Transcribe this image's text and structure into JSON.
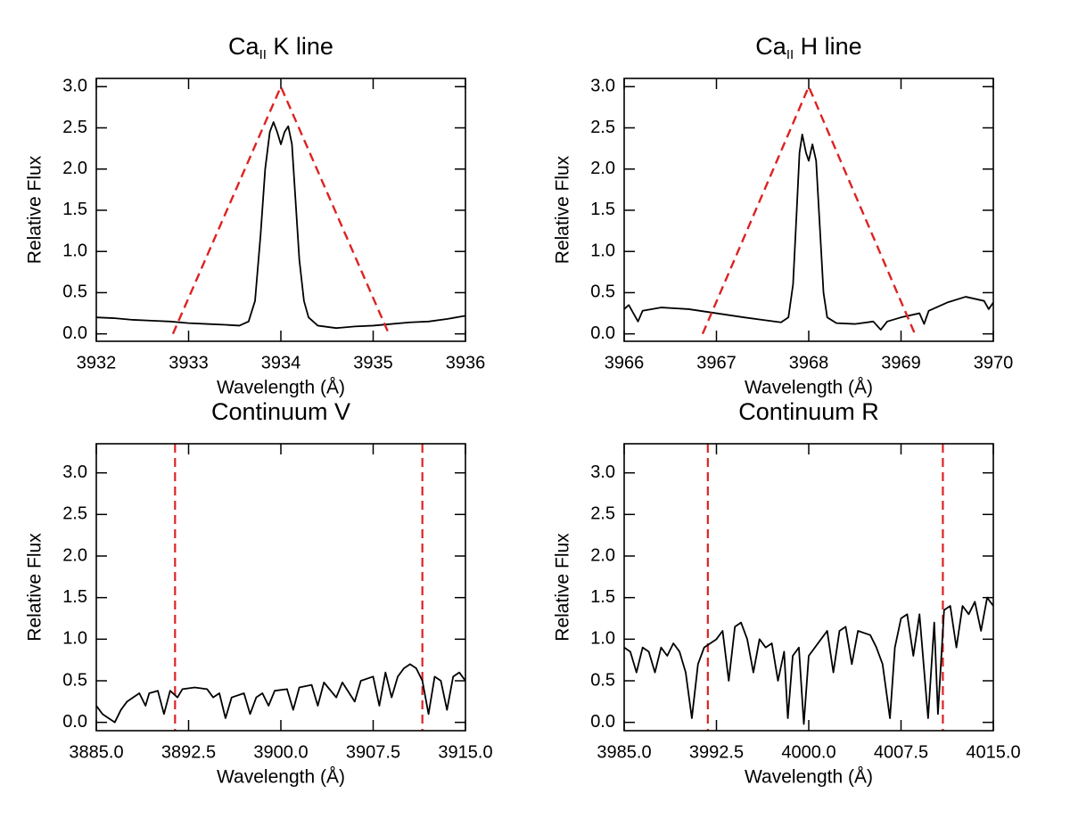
{
  "chart_data": [
    {
      "type": "line",
      "title": [
        {
          "text": "Ca"
        },
        {
          "text": "II",
          "sub": true
        },
        {
          "text": " K line"
        }
      ],
      "x_label": "Wavelength (Å)",
      "y_label": "Relative Flux",
      "xlim": [
        3932,
        3936
      ],
      "xticks": [
        3932,
        3933,
        3934,
        3935,
        3936
      ],
      "ylim": [
        -0.09,
        3.1
      ],
      "yticks": [
        {
          "value": 0,
          "label": "0.0"
        },
        0.5,
        {
          "value": 1,
          "label": "1.0"
        },
        1.5,
        {
          "value": 2,
          "label": "2.0"
        },
        2.5,
        {
          "value": 3,
          "label": "3.0"
        }
      ],
      "series": [
        {
          "color": "#000000",
          "style": "solid",
          "x": [
            3932.0,
            3932.2,
            3932.4,
            3932.6,
            3932.8,
            3933.0,
            3933.2,
            3933.4,
            3933.55,
            3933.65,
            3933.72,
            3933.78,
            3933.83,
            3933.88,
            3933.92,
            3933.96,
            3934.0,
            3934.04,
            3934.08,
            3934.12,
            3934.16,
            3934.2,
            3934.25,
            3934.3,
            3934.4,
            3934.6,
            3934.8,
            3935.0,
            3935.2,
            3935.4,
            3935.6,
            3935.8,
            3936.0
          ],
          "values": [
            0.2,
            0.19,
            0.17,
            0.16,
            0.15,
            0.13,
            0.12,
            0.11,
            0.1,
            0.15,
            0.4,
            1.2,
            2.0,
            2.45,
            2.57,
            2.45,
            2.3,
            2.45,
            2.52,
            2.3,
            1.6,
            0.9,
            0.4,
            0.2,
            0.1,
            0.07,
            0.09,
            0.1,
            0.12,
            0.14,
            0.15,
            0.18,
            0.22
          ]
        },
        {
          "color": "#dd2222",
          "style": "dashed",
          "x": [
            3932.83,
            3934,
            3935.17
          ],
          "values": [
            0,
            3,
            0
          ]
        }
      ]
    },
    {
      "type": "line",
      "title": [
        {
          "text": "Ca"
        },
        {
          "text": "II",
          "sub": true
        },
        {
          "text": " H line"
        }
      ],
      "x_label": "Wavelength (Å)",
      "y_label": "Relative Flux",
      "xlim": [
        3966,
        3970
      ],
      "xticks": [
        3966,
        3967,
        3968,
        3969,
        3970
      ],
      "ylim": [
        -0.09,
        3.1
      ],
      "yticks": [
        {
          "value": 0,
          "label": "0.0"
        },
        0.5,
        {
          "value": 1,
          "label": "1.0"
        },
        1.5,
        {
          "value": 2,
          "label": "2.0"
        },
        2.5,
        {
          "value": 3,
          "label": "3.0"
        }
      ],
      "series": [
        {
          "color": "#000000",
          "style": "solid",
          "x": [
            3966.0,
            3966.05,
            3966.1,
            3966.15,
            3966.2,
            3966.4,
            3966.7,
            3967.0,
            3967.3,
            3967.5,
            3967.7,
            3967.78,
            3967.83,
            3967.87,
            3967.9,
            3967.93,
            3967.97,
            3968.0,
            3968.04,
            3968.08,
            3968.12,
            3968.16,
            3968.2,
            3968.3,
            3968.5,
            3968.7,
            3968.78,
            3968.85,
            3969.0,
            3969.2,
            3969.25,
            3969.3,
            3969.5,
            3969.7,
            3969.9,
            3969.95,
            3970.0
          ],
          "values": [
            0.3,
            0.35,
            0.25,
            0.15,
            0.28,
            0.32,
            0.3,
            0.25,
            0.2,
            0.17,
            0.14,
            0.2,
            0.6,
            1.5,
            2.2,
            2.42,
            2.2,
            2.1,
            2.3,
            2.1,
            1.3,
            0.5,
            0.2,
            0.13,
            0.12,
            0.15,
            0.05,
            0.15,
            0.2,
            0.25,
            0.12,
            0.28,
            0.38,
            0.45,
            0.4,
            0.3,
            0.38
          ]
        },
        {
          "color": "#dd2222",
          "style": "dashed",
          "x": [
            3966.85,
            3968,
            3969.15
          ],
          "values": [
            0,
            3,
            0
          ]
        }
      ]
    },
    {
      "type": "line",
      "title": [
        {
          "text": "Continuum V"
        }
      ],
      "x_label": "Wavelength (Å)",
      "y_label": "Relative Flux",
      "xlim": [
        3885,
        3915
      ],
      "xticks": [
        {
          "value": 3885,
          "label": "3885.0"
        },
        3892.5,
        {
          "value": 3900,
          "label": "3900.0"
        },
        3907.5,
        {
          "value": 3915,
          "label": "3915.0"
        }
      ],
      "ylim": [
        -0.1,
        3.35
      ],
      "yticks": [
        {
          "value": 0,
          "label": "0.0"
        },
        0.5,
        {
          "value": 1,
          "label": "1.0"
        },
        1.5,
        {
          "value": 2,
          "label": "2.0"
        },
        2.5,
        {
          "value": 3,
          "label": "3.0"
        }
      ],
      "vlines": {
        "color": "#dd2222",
        "style": "dashed",
        "x": [
          3891.4,
          3911.5
        ]
      },
      "series": [
        {
          "color": "#000000",
          "style": "solid",
          "x": [
            3885,
            3885.5,
            3886,
            3886.5,
            3887,
            3887.5,
            3888,
            3888.5,
            3889,
            3889.3,
            3890,
            3890.5,
            3891,
            3891.6,
            3892,
            3893,
            3894,
            3894.5,
            3895,
            3895.5,
            3896,
            3897,
            3897.5,
            3898,
            3898.5,
            3899,
            3899.5,
            3900.5,
            3901,
            3901.5,
            3902.5,
            3903,
            3903.5,
            3904.5,
            3905,
            3906,
            3906.5,
            3907.5,
            3908,
            3908.5,
            3909,
            3909.5,
            3910,
            3910.5,
            3911,
            3911.5,
            3912,
            3912.5,
            3913,
            3913.5,
            3914,
            3914.5,
            3915
          ],
          "values": [
            0.2,
            0.1,
            0.05,
            0.0,
            0.15,
            0.25,
            0.3,
            0.35,
            0.2,
            0.35,
            0.38,
            0.1,
            0.38,
            0.3,
            0.4,
            0.42,
            0.4,
            0.3,
            0.35,
            0.05,
            0.3,
            0.35,
            0.1,
            0.3,
            0.35,
            0.2,
            0.38,
            0.4,
            0.15,
            0.42,
            0.45,
            0.2,
            0.48,
            0.3,
            0.48,
            0.25,
            0.5,
            0.55,
            0.2,
            0.6,
            0.3,
            0.55,
            0.65,
            0.7,
            0.65,
            0.5,
            0.1,
            0.55,
            0.5,
            0.15,
            0.55,
            0.6,
            0.5
          ]
        }
      ]
    },
    {
      "type": "line",
      "title": [
        {
          "text": "Continuum R"
        }
      ],
      "x_label": "Wavelength (Å)",
      "y_label": "Relative Flux",
      "xlim": [
        3985,
        4015
      ],
      "xticks": [
        {
          "value": 3985,
          "label": "3985.0"
        },
        3992.5,
        {
          "value": 4000,
          "label": "4000.0"
        },
        4007.5,
        {
          "value": 4015,
          "label": "4015.0"
        }
      ],
      "ylim": [
        -0.1,
        3.35
      ],
      "yticks": [
        {
          "value": 0,
          "label": "0.0"
        },
        0.5,
        {
          "value": 1,
          "label": "1.0"
        },
        1.5,
        {
          "value": 2,
          "label": "2.0"
        },
        2.5,
        {
          "value": 3,
          "label": "3.0"
        }
      ],
      "vlines": {
        "color": "#dd2222",
        "style": "dashed",
        "x": [
          3991.8,
          4010.9
        ]
      },
      "series": [
        {
          "color": "#000000",
          "style": "solid",
          "x": [
            3985,
            3985.5,
            3986,
            3986.5,
            3987,
            3987.5,
            3988,
            3988.5,
            3989,
            3989.5,
            3990,
            3990.5,
            3991,
            3991.5,
            3992,
            3992.5,
            3993,
            3993.5,
            3994,
            3994.5,
            3995,
            3995.5,
            3996,
            3996.5,
            3997,
            3997.5,
            3998,
            3998.3,
            3998.7,
            3999.2,
            3999.6,
            4000,
            4001,
            4001.5,
            4002,
            4002.5,
            4003,
            4003.5,
            4004,
            4005,
            4005.5,
            4006,
            4006.6,
            4007,
            4007.5,
            4008,
            4008.5,
            4009,
            4009.7,
            4010.2,
            4010.5,
            4011,
            4011.5,
            4012,
            4012.5,
            4013,
            4013.5,
            4014,
            4014.5,
            4015
          ],
          "values": [
            0.9,
            0.85,
            0.6,
            0.9,
            0.85,
            0.6,
            0.9,
            0.8,
            0.95,
            0.85,
            0.6,
            0.05,
            0.7,
            0.9,
            0.95,
            1.0,
            1.1,
            0.5,
            1.15,
            1.2,
            1.0,
            0.6,
            1.0,
            0.9,
            0.95,
            0.5,
            0.85,
            0.05,
            0.8,
            0.9,
            -0.02,
            0.8,
            1.0,
            1.1,
            0.6,
            1.1,
            1.15,
            0.7,
            1.1,
            1.05,
            0.9,
            0.7,
            0.05,
            0.9,
            1.25,
            1.3,
            0.8,
            1.3,
            0.05,
            1.2,
            0.1,
            1.35,
            1.4,
            0.9,
            1.4,
            1.3,
            1.45,
            1.1,
            1.5,
            1.4
          ]
        }
      ]
    }
  ]
}
